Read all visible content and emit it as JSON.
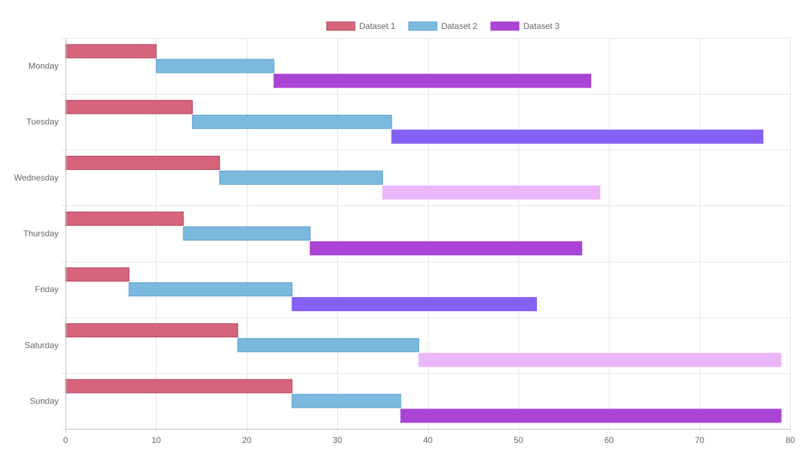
{
  "chart_data": {
    "type": "bar",
    "orientation": "horizontal",
    "layout": "floating-ranges",
    "title": "",
    "xlabel": "",
    "ylabel": "",
    "xlim": [
      0,
      80
    ],
    "x_ticks": [
      0,
      10,
      20,
      30,
      40,
      50,
      60,
      70,
      80
    ],
    "grid": true,
    "legend_position": "top-center",
    "categories": [
      "Monday",
      "Tuesday",
      "Wednesday",
      "Thursday",
      "Friday",
      "Saturday",
      "Sunday"
    ],
    "series": [
      {
        "name": "Dataset 1",
        "color": "#d6657c",
        "border_color": "#b0405a",
        "values": [
          [
            0,
            10
          ],
          [
            0,
            14
          ],
          [
            0,
            17
          ],
          [
            0,
            13
          ],
          [
            0,
            7
          ],
          [
            0,
            19
          ],
          [
            0,
            25
          ]
        ]
      },
      {
        "name": "Dataset 2",
        "color": "#7bb9de",
        "border_color": "#5a9fcc",
        "values": [
          [
            10,
            23
          ],
          [
            14,
            36
          ],
          [
            17,
            35
          ],
          [
            13,
            27
          ],
          [
            7,
            25
          ],
          [
            19,
            39
          ],
          [
            25,
            37
          ]
        ]
      },
      {
        "name": "Dataset 3",
        "color": "#a944d4",
        "border_color": "#a944d4",
        "values": [
          [
            23,
            58
          ],
          [
            36,
            77
          ],
          [
            35,
            59
          ],
          [
            27,
            57
          ],
          [
            25,
            52
          ],
          [
            39,
            79
          ],
          [
            37,
            79
          ]
        ],
        "bar_colors": [
          "#a944d4",
          "#8560f7",
          "#ecb7fa",
          "#a944d4",
          "#8560f7",
          "#ecb7fa",
          "#a944d4"
        ]
      }
    ]
  }
}
